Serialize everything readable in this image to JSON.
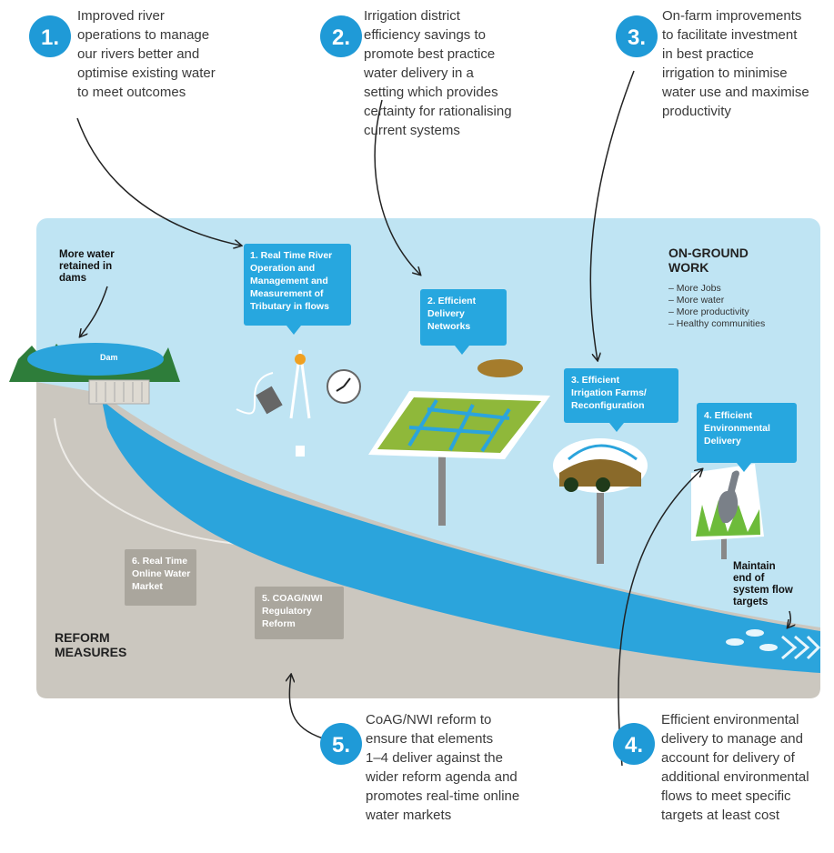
{
  "callouts": [
    {
      "number": "1.",
      "lines": [
        "Improved river",
        "operations to manage",
        "our rivers better and",
        "optimise existing water",
        "to meet outcomes"
      ]
    },
    {
      "number": "2.",
      "lines": [
        "Irrigation district",
        "efficiency savings to",
        "promote best practice",
        "water delivery in a",
        "setting which provides",
        "certainty for rationalising",
        "current systems"
      ]
    },
    {
      "number": "3.",
      "lines": [
        "On-farm improvements",
        "to facilitate investment",
        "in best practice",
        "irrigation to minimise",
        "water use and maximise",
        "productivity"
      ]
    },
    {
      "number": "5.",
      "lines": [
        "CoAG/NWI reform to",
        "ensure that elements",
        "1–4 deliver against the",
        "wider reform agenda and",
        "promotes real-time online",
        "water markets"
      ]
    },
    {
      "number": "4.",
      "lines": [
        "Efficient environmental",
        "delivery to manage and",
        "account for delivery of",
        "additional environmental",
        "flows to meet specific",
        "targets at least cost"
      ]
    }
  ],
  "diagram": {
    "dam_note": [
      "More water",
      "retained in",
      "dams"
    ],
    "dam": "Dam",
    "work_boxes": [
      [
        "1. Real Time River",
        "Operation and",
        "Management and",
        "Measurement of",
        "Tributary in flows"
      ],
      [
        "2. Efficient",
        "Delivery",
        "Networks"
      ],
      [
        "3. Efficient",
        "Irrigation Farms/",
        "Reconfiguration"
      ],
      [
        "4. Efficient",
        "Environmental",
        "Delivery"
      ]
    ],
    "on_ground": {
      "title": [
        "ON-GROUND",
        "WORK"
      ],
      "items": [
        "– More Jobs",
        "– More water",
        "– More productivity",
        "– Healthy communities"
      ]
    },
    "flow_note": [
      "Maintain",
      "end of",
      "system flow",
      "targets"
    ],
    "reform_boxes": [
      [
        "6. Real Time",
        "Online Water",
        "Market"
      ],
      [
        "5. COAG/NWI",
        "Regulatory",
        "Reform"
      ]
    ],
    "reform_title": [
      "REFORM",
      "MEASURES"
    ]
  }
}
